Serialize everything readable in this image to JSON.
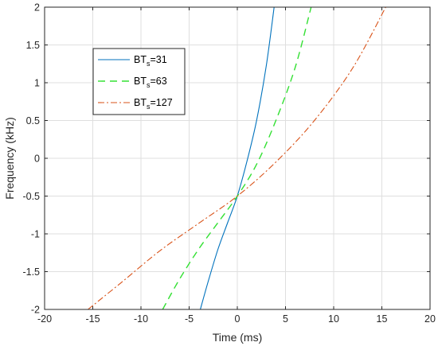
{
  "chart_data": {
    "type": "line",
    "xlabel": "Time (ms)",
    "ylabel": "Frequency (kHz)",
    "xlim": [
      -20,
      20
    ],
    "ylim": [
      -2,
      2
    ],
    "xticks": [
      -20,
      -15,
      -10,
      -5,
      0,
      5,
      10,
      15,
      20
    ],
    "yticks": [
      -2,
      -1.5,
      -1,
      -0.5,
      0,
      0.5,
      1,
      1.5,
      2
    ],
    "xtick_labels": [
      "-20",
      "-15",
      "-10",
      "-5",
      "0",
      "5",
      "10",
      "15",
      "20"
    ],
    "ytick_labels": [
      "-2",
      "-1.5",
      "-1",
      "-0.5",
      "0",
      "0.5",
      "1",
      "1.5",
      "2"
    ],
    "grid": true,
    "legend": "upper-left",
    "series": [
      {
        "name": "BTs=31",
        "label_base": "BT",
        "label_sub": "s",
        "label_tail": "=31",
        "color": "#0072BD",
        "style": "solid",
        "x": [
          -3.84,
          -3,
          -2,
          -1,
          0,
          1,
          2,
          3,
          3.82
        ],
        "y": [
          -2.0,
          -1.62,
          -1.2,
          -0.85,
          -0.5,
          -0.04,
          0.5,
          1.22,
          2.0
        ]
      },
      {
        "name": "BTs=63",
        "label_base": "BT",
        "label_sub": "s",
        "label_tail": "=63",
        "color": "#33E033",
        "style": "dashed",
        "x": [
          -7.75,
          -6,
          -4,
          -2,
          0,
          2,
          4,
          6,
          7.66
        ],
        "y": [
          -2.0,
          -1.6,
          -1.2,
          -0.85,
          -0.5,
          -0.08,
          0.5,
          1.2,
          2.0
        ]
      },
      {
        "name": "BTs=127",
        "label_base": "BT",
        "label_sub": "s",
        "label_tail": "=127",
        "color": "#D95319",
        "style": "dash-dot",
        "x": [
          -15.5,
          -12,
          -8,
          -4,
          0,
          4,
          8,
          12,
          15.4
        ],
        "y": [
          -2.0,
          -1.64,
          -1.22,
          -0.86,
          -0.5,
          -0.05,
          0.5,
          1.2,
          2.0
        ]
      }
    ]
  }
}
